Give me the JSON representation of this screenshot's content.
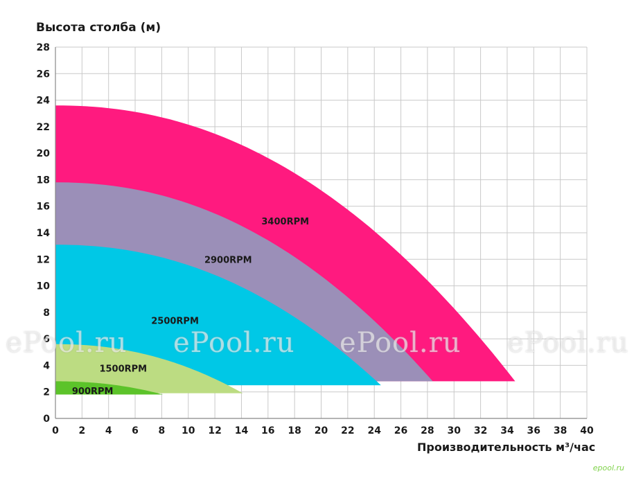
{
  "chart_data": {
    "type": "area",
    "ylabel": "Высота столба (м)",
    "xlabel": "Производительность м³/час",
    "xlim": [
      0,
      40
    ],
    "ylim": [
      0,
      28
    ],
    "x_ticks": [
      "0",
      "2",
      "4",
      "6",
      "8",
      "10",
      "12",
      "14",
      "16",
      "18",
      "20",
      "22",
      "24",
      "26",
      "28",
      "30",
      "32",
      "34",
      "36",
      "38",
      "40"
    ],
    "y_ticks": [
      "0",
      "2",
      "4",
      "6",
      "8",
      "10",
      "12",
      "14",
      "16",
      "18",
      "20",
      "22",
      "24",
      "26",
      "28"
    ],
    "grid": true,
    "series": [
      {
        "name": "3400RPM",
        "color": "#ff1a7f",
        "max_flow": 34.6,
        "max_head": 23.6,
        "min_head": 2.8,
        "label_at": [
          17.3,
          14.9
        ]
      },
      {
        "name": "2900RPM",
        "color": "#9b8fb8",
        "max_flow": 28.4,
        "max_head": 17.8,
        "min_head": 2.8,
        "label_at": [
          13.0,
          12.0
        ]
      },
      {
        "name": "2500RPM",
        "color": "#00c8e6",
        "max_flow": 24.5,
        "max_head": 13.1,
        "min_head": 2.5,
        "label_at": [
          9.0,
          7.4
        ]
      },
      {
        "name": "1500RPM",
        "color": "#bcdc82",
        "max_flow": 14.1,
        "max_head": 5.6,
        "min_head": 1.9,
        "label_at": [
          5.1,
          3.8
        ]
      },
      {
        "name": "900RPM",
        "color": "#5cc32a",
        "max_flow": 8.1,
        "max_head": 2.8,
        "min_head": 1.8,
        "label_at": [
          2.8,
          2.1
        ]
      }
    ]
  },
  "watermarks": [
    "ePool.ru",
    "ePool.ru",
    "ePool.ru",
    "ePool.ru"
  ],
  "corner_mark": "epool.ru"
}
